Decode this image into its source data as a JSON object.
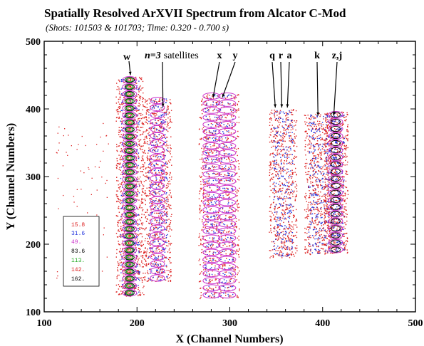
{
  "chart_data": {
    "type": "scatter",
    "title": "Spatially Resolved ArXVII Spectrum from Alcator C-Mod",
    "subtitle": "(Shots: 101503 & 101703; Time: 0.320 - 0.700 s)",
    "xlabel": "X (Channel Numbers)",
    "ylabel": "Y (Channel Numbers)",
    "xlim": [
      100,
      500
    ],
    "ylim": [
      100,
      500
    ],
    "xticks": [
      "100",
      "200",
      "300",
      "400",
      "500"
    ],
    "yticks": [
      "100",
      "200",
      "300",
      "400",
      "500"
    ],
    "grid": false,
    "annotations": [
      {
        "id": "w",
        "label": "w",
        "x": 193,
        "y": 450
      },
      {
        "id": "sat-n",
        "label": "n=3",
        "x": 228,
        "y": 403
      },
      {
        "id": "sat-word",
        "label": "satellites",
        "x": 228,
        "y": 403
      },
      {
        "id": "x",
        "label": "x",
        "x": 282,
        "y": 417
      },
      {
        "id": "y",
        "label": "y",
        "x": 292,
        "y": 417
      },
      {
        "id": "q",
        "label": "q",
        "x": 349,
        "y": 402
      },
      {
        "id": "r",
        "label": "r",
        "x": 356,
        "y": 402
      },
      {
        "id": "a",
        "label": "a",
        "x": 362,
        "y": 402
      },
      {
        "id": "k",
        "label": "k",
        "x": 395,
        "y": 390
      },
      {
        "id": "zj",
        "label": "z,j",
        "x": 412,
        "y": 390
      }
    ],
    "contour_levels": [
      {
        "label": "15.8",
        "color": "#dd2222"
      },
      {
        "label": "31.6",
        "color": "#2233dd"
      },
      {
        "label": "49.",
        "color": "#cc33cc"
      },
      {
        "label": "83.6",
        "color": "#000000"
      },
      {
        "label": "113.",
        "color": "#22aa22"
      },
      {
        "label": "142.",
        "color": "#dd2222"
      },
      {
        "label": "162.",
        "color": "#000000"
      }
    ],
    "line_columns": [
      {
        "name": "w",
        "x": 192,
        "y_range": [
          128,
          448
        ],
        "max_level": 5
      },
      {
        "name": "satellites",
        "x": 222,
        "y_range": [
          150,
          422
        ],
        "max_level": 2
      },
      {
        "name": "x,y",
        "x": 288,
        "y_range": [
          125,
          428
        ],
        "max_level": 2
      },
      {
        "name": "q,r,a",
        "x": 357,
        "y_range": [
          185,
          405
        ],
        "max_level": 1
      },
      {
        "name": "k",
        "x": 395,
        "y_range": [
          190,
          393
        ],
        "max_level": 1
      },
      {
        "name": "z,j",
        "x": 414,
        "y_range": [
          192,
          394
        ],
        "max_level": 3
      }
    ]
  }
}
